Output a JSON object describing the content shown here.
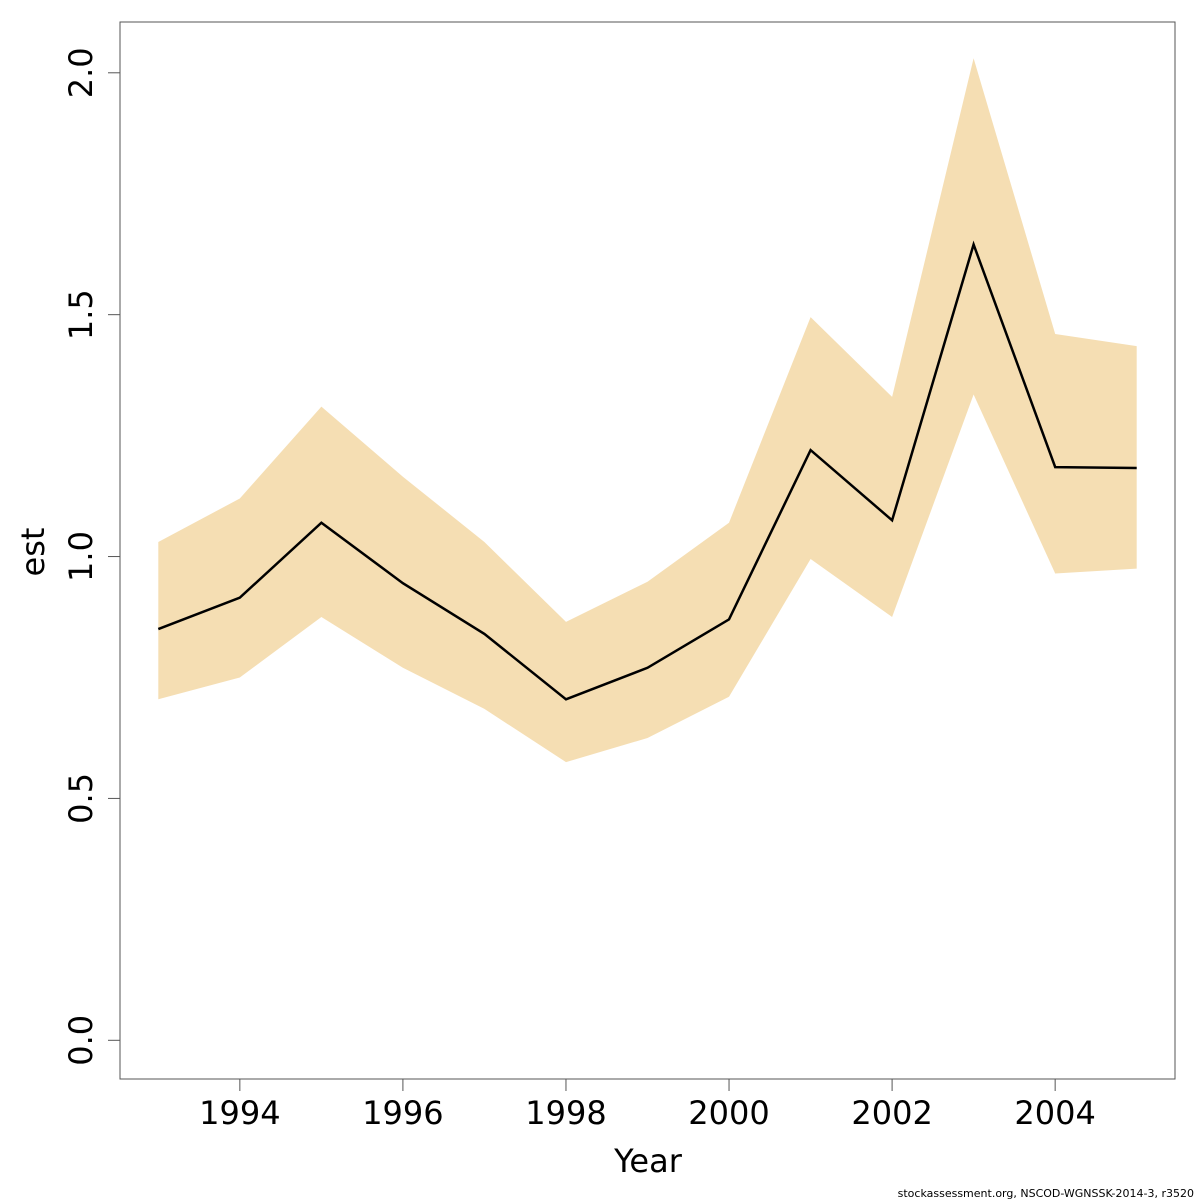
{
  "chart_data": {
    "type": "line",
    "title": "",
    "xlabel": "Year",
    "ylabel": "est",
    "xlim": [
      1992.53,
      2005.47
    ],
    "ylim": [
      -0.08,
      2.105
    ],
    "xticks": [
      1994,
      1996,
      1998,
      2000,
      2002,
      2004
    ],
    "xtick_labels": [
      "1994",
      "1996",
      "1998",
      "2000",
      "2002",
      "2004"
    ],
    "yticks": [
      0.0,
      0.5,
      1.0,
      1.5,
      2.0
    ],
    "ytick_labels": [
      "0.0",
      "0.5",
      "1.0",
      "1.5",
      "2.0"
    ],
    "grid": false,
    "legend": "none",
    "band_color": "#F5DEB3",
    "line_color": "#000000",
    "x": [
      1993,
      1994,
      1995,
      1996,
      1997,
      1998,
      1999,
      2000,
      2001,
      2002,
      2003,
      2004,
      2005
    ],
    "series": [
      {
        "values": [
          0.85,
          0.915,
          1.07,
          0.945,
          0.84,
          0.705,
          0.77,
          0.87,
          1.22,
          1.075,
          1.645,
          1.185,
          1.183
        ]
      }
    ],
    "band": {
      "lower": [
        0.705,
        0.75,
        0.875,
        0.77,
        0.685,
        0.575,
        0.625,
        0.71,
        0.995,
        0.875,
        1.335,
        0.965,
        0.975
      ],
      "upper": [
        1.03,
        1.12,
        1.31,
        1.165,
        1.03,
        0.865,
        0.948,
        1.07,
        1.495,
        1.33,
        2.03,
        1.46,
        1.435
      ]
    }
  },
  "footer": {
    "source_text": "stockassessment.org, NSCOD-WGNSSK-2014-3, r3520"
  }
}
